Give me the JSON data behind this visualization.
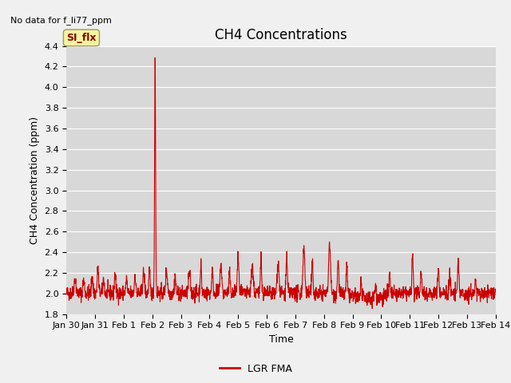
{
  "title": "CH4 Concentrations",
  "xlabel": "Time",
  "ylabel": "CH4 Concentration (ppm)",
  "ylim": [
    1.8,
    4.4
  ],
  "yticks": [
    1.8,
    2.0,
    2.2,
    2.4,
    2.6,
    2.8,
    3.0,
    3.2,
    3.4,
    3.6,
    3.8,
    4.0,
    4.2,
    4.4
  ],
  "line_color": "#cc0000",
  "line_width": 0.8,
  "fig_bg_color": "#f0f0f0",
  "plot_bg_color": "#d8d8d8",
  "no_data_text": "No data for f_li77_ppm",
  "legend_label": "LGR FMA",
  "si_flx_label": "SI_flx",
  "title_fontsize": 12,
  "axis_label_fontsize": 9,
  "tick_fontsize": 8
}
